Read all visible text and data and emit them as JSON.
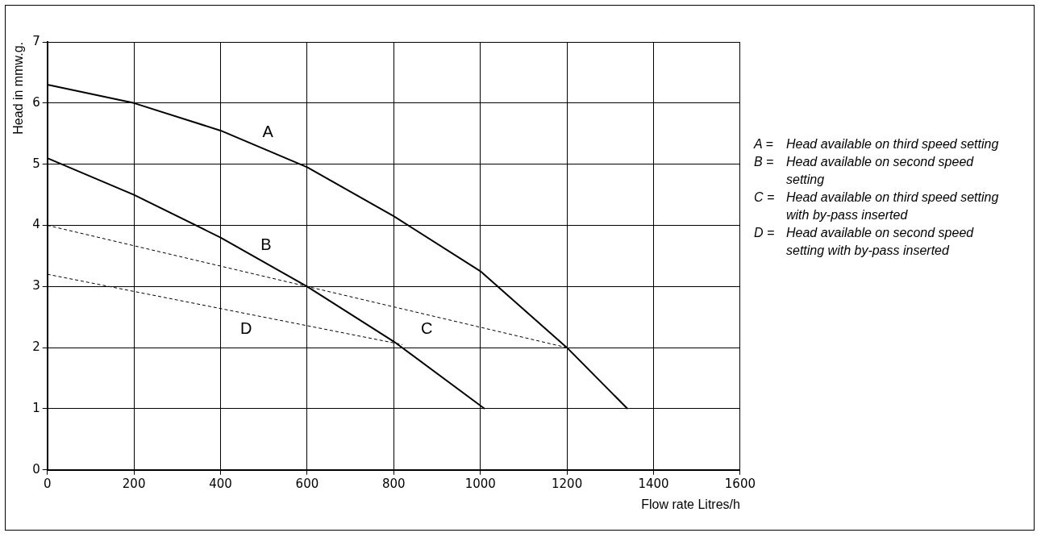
{
  "chart_data": {
    "type": "line",
    "xlabel": "Flow rate Litres/h",
    "ylabel": "Head in mmw.g.",
    "xlim": [
      0,
      1600
    ],
    "xticks": [
      0,
      200,
      400,
      600,
      800,
      1000,
      1200,
      1400,
      1600
    ],
    "ylim": [
      0,
      7
    ],
    "yticks": [
      0,
      1,
      2,
      3,
      4,
      5,
      6,
      7
    ],
    "grid": true,
    "marker": "none",
    "legend": false,
    "series": [
      {
        "name": "A",
        "color": "#000000",
        "line_style": "solid",
        "x": [
          0,
          200,
          400,
          600,
          800,
          1000,
          1200,
          1340
        ],
        "values": [
          6.3,
          6.0,
          5.55,
          4.95,
          4.15,
          3.25,
          2.0,
          1.0
        ]
      },
      {
        "name": "B",
        "color": "#000000",
        "line_style": "solid",
        "x": [
          0,
          200,
          400,
          600,
          800,
          1010
        ],
        "values": [
          5.1,
          4.5,
          3.8,
          3.0,
          2.1,
          1.0
        ]
      },
      {
        "name": "C",
        "color": "#000000",
        "line_style": "dashed",
        "x": [
          0,
          1200
        ],
        "values": [
          4.0,
          2.0
        ]
      },
      {
        "name": "D",
        "color": "#000000",
        "line_style": "dashed",
        "x": [
          0,
          820
        ],
        "values": [
          3.2,
          2.05
        ]
      }
    ],
    "annotations": [
      "A = Head available on third speed setting",
      "B = Head available on second speed setting",
      "C = Head available on third speed setting with by-pass inserted",
      "D = Head available on second speed setting with by-pass inserted"
    ]
  }
}
